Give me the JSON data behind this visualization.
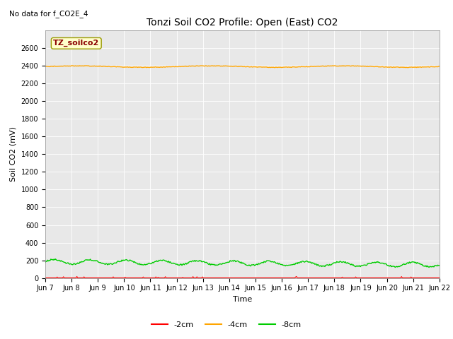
{
  "title": "Tonzi Soil CO2 Profile: Open (East) CO2",
  "no_data_text": "No data for f_CO2E_4",
  "xlabel": "Time",
  "ylabel": "Soil CO2 (mV)",
  "ylim": [
    0,
    2800
  ],
  "yticks": [
    0,
    200,
    400,
    600,
    800,
    1000,
    1200,
    1400,
    1600,
    1800,
    2000,
    2200,
    2400,
    2600
  ],
  "x_tick_labels": [
    "Jun 7",
    "Jun 8",
    "Jun 9",
    "Jun 10",
    "Jun 11",
    "Jun 12",
    "Jun 13",
    "Jun 14",
    "Jun 15",
    "Jun 16",
    "Jun 17",
    "Jun 18",
    "Jun 19",
    "Jun 20",
    "Jun 21",
    "Jun 22"
  ],
  "color_2cm": "#ff0000",
  "color_4cm": "#ffa500",
  "color_8cm": "#00cc00",
  "legend_label_2cm": "-2cm",
  "legend_label_4cm": "-4cm",
  "legend_label_8cm": "-8cm",
  "annotation_label": "TZ_soilco2",
  "bg_color": "#e8e8e8",
  "n_points": 500,
  "title_fontsize": 10,
  "axis_label_fontsize": 8,
  "tick_fontsize": 7,
  "legend_fontsize": 8
}
